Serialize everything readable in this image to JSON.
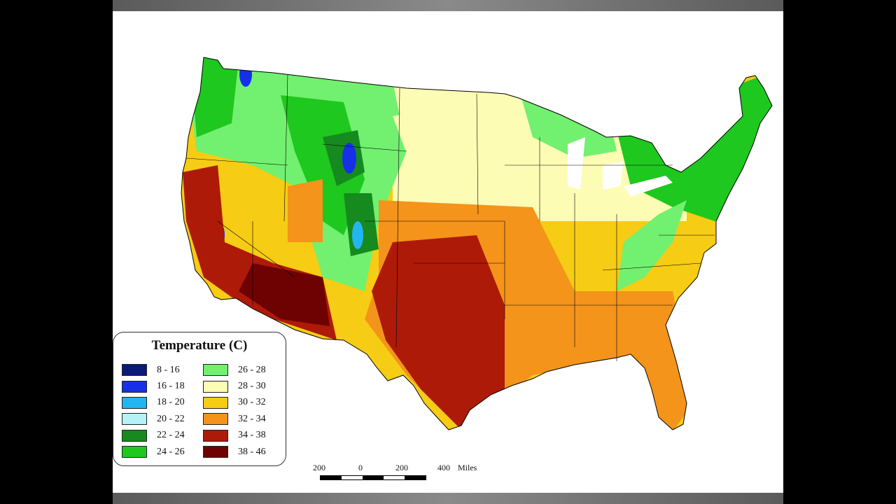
{
  "legend": {
    "title": "Temperature (C)",
    "items": [
      {
        "label": "8 - 16",
        "color": "#0a1a7a"
      },
      {
        "label": "16 - 18",
        "color": "#1630e8"
      },
      {
        "label": "18 - 20",
        "color": "#22b6f0"
      },
      {
        "label": "20 - 22",
        "color": "#b4f2f6"
      },
      {
        "label": "22 - 24",
        "color": "#168a1e"
      },
      {
        "label": "24 - 26",
        "color": "#1ec81e"
      },
      {
        "label": "26 - 28",
        "color": "#72f070"
      },
      {
        "label": "28 - 30",
        "color": "#fcfcb4"
      },
      {
        "label": "30 - 32",
        "color": "#f6cc14"
      },
      {
        "label": "32 - 34",
        "color": "#f4941a"
      },
      {
        "label": "34 - 38",
        "color": "#ae1a08"
      },
      {
        "label": "38 - 46",
        "color": "#6e0202"
      }
    ]
  },
  "scale_bar": {
    "labels": [
      "200",
      "0",
      "200",
      "400"
    ],
    "unit": "Miles"
  }
}
